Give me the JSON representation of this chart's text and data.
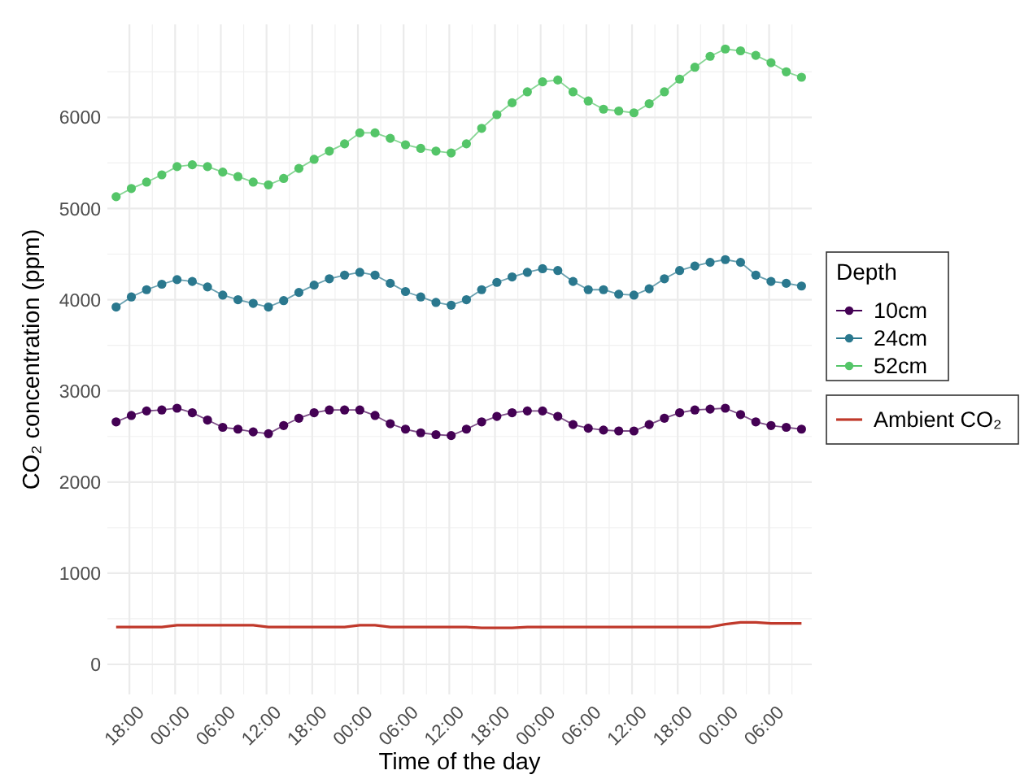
{
  "chart_data": {
    "type": "line",
    "xlabel": "Time of the day",
    "ylabel": "CO₂ concentration (ppm)",
    "legend_title": "Depth",
    "legend": "right",
    "grid": true,
    "marker": "circle",
    "xlim": [
      "--01-01T15:06",
      "--01-05T11:36"
    ],
    "ylim": [
      -330,
      7020
    ],
    "yticks": [
      0,
      1000,
      2000,
      3000,
      4000,
      5000,
      6000
    ],
    "xticks": [
      {
        "value": "--01-01T18:00",
        "label": "18:00"
      },
      {
        "value": "--01-02T00:00",
        "label": "00:00"
      },
      {
        "value": "--01-02T06:00",
        "label": "06:00"
      },
      {
        "value": "--01-02T12:00",
        "label": "12:00"
      },
      {
        "value": "--01-02T18:00",
        "label": "18:00"
      },
      {
        "value": "--01-03T00:00",
        "label": "00:00"
      },
      {
        "value": "--01-03T06:00",
        "label": "06:00"
      },
      {
        "value": "--01-03T12:00",
        "label": "12:00"
      },
      {
        "value": "--01-03T18:00",
        "label": "18:00"
      },
      {
        "value": "--01-04T00:00",
        "label": "00:00"
      },
      {
        "value": "--01-04T06:00",
        "label": "06:00"
      },
      {
        "value": "--01-04T12:00",
        "label": "12:00"
      },
      {
        "value": "--01-04T18:00",
        "label": "18:00"
      },
      {
        "value": "--01-05T00:00",
        "label": "00:00"
      },
      {
        "value": "--01-05T06:00",
        "label": "06:00"
      }
    ],
    "x": [
      "--01-01T16:15",
      "--01-01T18:15",
      "--01-01T20:15",
      "--01-01T22:15",
      "--01-02T00:15",
      "--01-02T02:15",
      "--01-02T04:15",
      "--01-02T06:15",
      "--01-02T08:15",
      "--01-02T10:15",
      "--01-02T12:15",
      "--01-02T14:15",
      "--01-02T16:15",
      "--01-02T18:15",
      "--01-02T20:15",
      "--01-02T22:15",
      "--01-03T00:15",
      "--01-03T02:15",
      "--01-03T04:15",
      "--01-03T06:15",
      "--01-03T08:15",
      "--01-03T10:15",
      "--01-03T12:15",
      "--01-03T14:15",
      "--01-03T16:15",
      "--01-03T18:15",
      "--01-03T20:15",
      "--01-03T22:15",
      "--01-04T00:15",
      "--01-04T02:15",
      "--01-04T04:15",
      "--01-04T06:15",
      "--01-04T08:15",
      "--01-04T10:15",
      "--01-04T12:15",
      "--01-04T14:15",
      "--01-04T16:15",
      "--01-04T18:15",
      "--01-04T20:15",
      "--01-04T22:15",
      "--01-05T00:15",
      "--01-05T02:15",
      "--01-05T04:15",
      "--01-05T06:15",
      "--01-05T08:15",
      "--01-05T10:15"
    ],
    "series": [
      {
        "name": "10cm",
        "color": "#440154",
        "values": [
          2660,
          2730,
          2780,
          2790,
          2810,
          2760,
          2680,
          2600,
          2580,
          2550,
          2530,
          2620,
          2700,
          2760,
          2790,
          2790,
          2790,
          2730,
          2640,
          2580,
          2540,
          2520,
          2510,
          2580,
          2660,
          2720,
          2760,
          2780,
          2780,
          2720,
          2630,
          2590,
          2570,
          2560,
          2560,
          2630,
          2700,
          2760,
          2790,
          2800,
          2810,
          2740,
          2660,
          2620,
          2600,
          2580
        ]
      },
      {
        "name": "24cm",
        "color": "#2a788e",
        "values": [
          3920,
          4030,
          4110,
          4170,
          4220,
          4200,
          4140,
          4050,
          4000,
          3960,
          3920,
          3990,
          4080,
          4160,
          4230,
          4270,
          4300,
          4270,
          4180,
          4090,
          4030,
          3970,
          3940,
          4000,
          4110,
          4190,
          4250,
          4300,
          4340,
          4320,
          4200,
          4110,
          4110,
          4060,
          4050,
          4120,
          4230,
          4320,
          4370,
          4410,
          4440,
          4410,
          4270,
          4200,
          4180,
          4150
        ]
      },
      {
        "name": "52cm",
        "color": "#54c568",
        "values": [
          5130,
          5220,
          5290,
          5370,
          5460,
          5480,
          5460,
          5400,
          5350,
          5290,
          5260,
          5330,
          5440,
          5540,
          5630,
          5710,
          5830,
          5830,
          5770,
          5700,
          5660,
          5630,
          5610,
          5710,
          5880,
          6030,
          6160,
          6280,
          6390,
          6410,
          6280,
          6180,
          6090,
          6070,
          6050,
          6150,
          6280,
          6420,
          6550,
          6670,
          6750,
          6730,
          6680,
          6600,
          6500,
          6440
        ]
      },
      {
        "name": "Ambient CO₂",
        "color": "#c0392b",
        "marker": "none",
        "values": [
          410,
          410,
          410,
          410,
          430,
          430,
          430,
          430,
          430,
          430,
          410,
          410,
          410,
          410,
          410,
          410,
          430,
          430,
          410,
          410,
          410,
          410,
          410,
          410,
          400,
          400,
          400,
          410,
          410,
          410,
          410,
          410,
          410,
          410,
          410,
          410,
          410,
          410,
          410,
          410,
          440,
          460,
          460,
          450,
          450,
          450
        ]
      }
    ]
  }
}
